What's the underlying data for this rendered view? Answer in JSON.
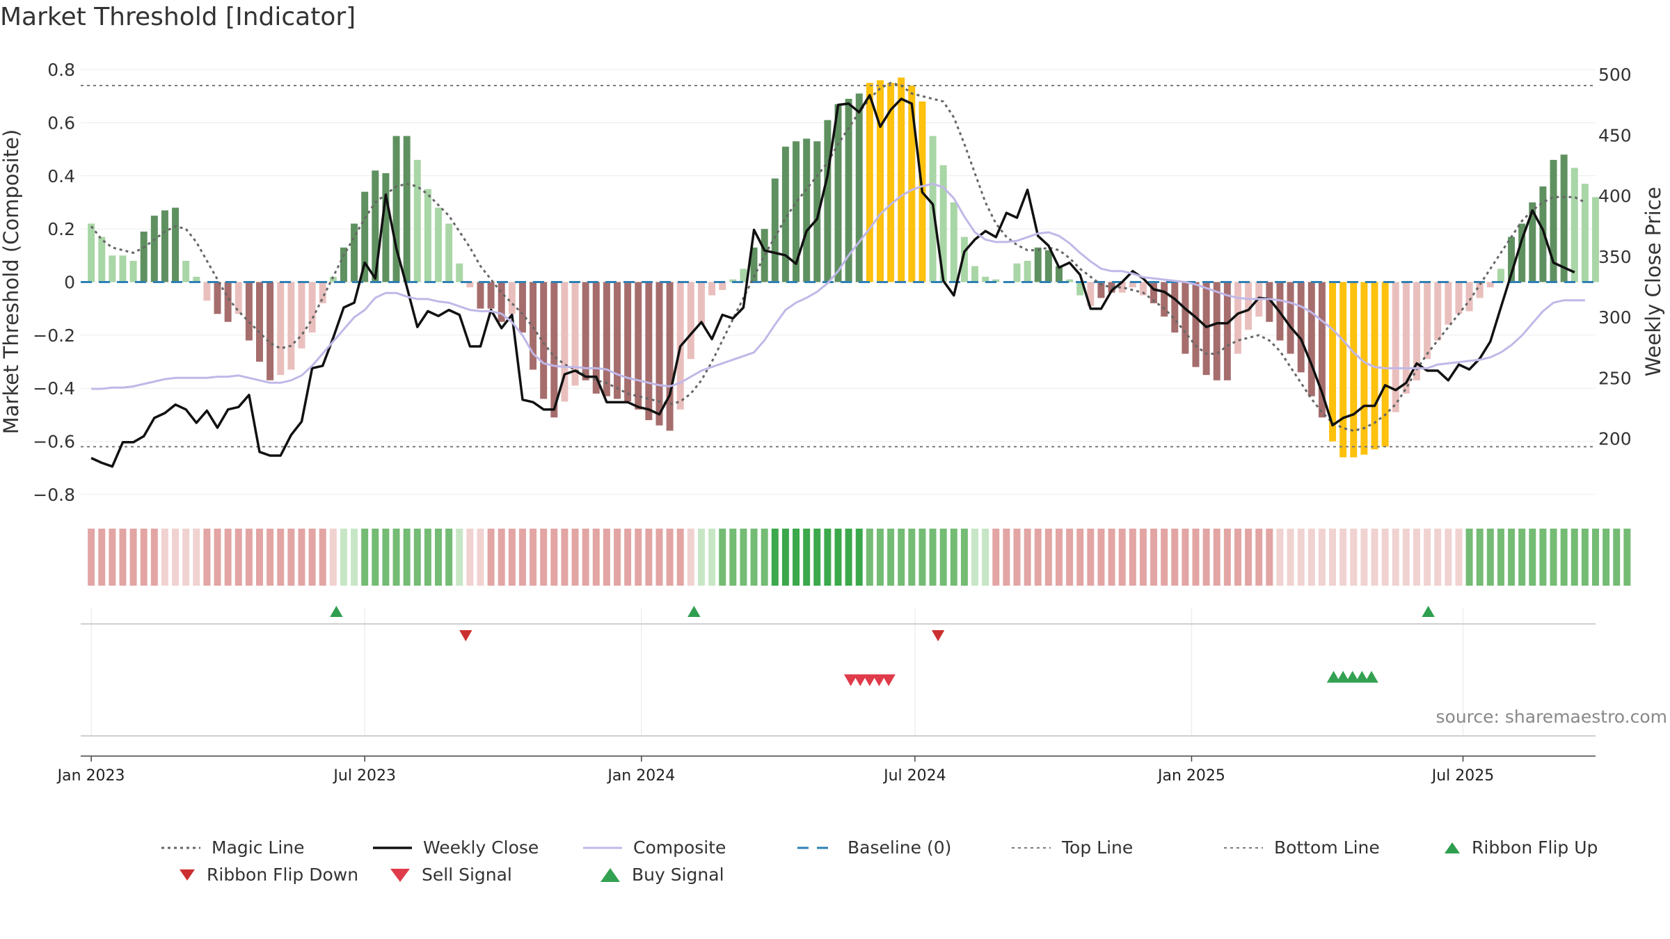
{
  "chart_data": {
    "type": "bar",
    "title": "Market Threshold [Indicator]",
    "ylabel": "Market Threshold (Composite)",
    "ylabel_right": "Weekly Close Price",
    "ylim": [
      -0.85,
      0.85
    ],
    "ylim_right": [
      143,
      515
    ],
    "yticks": [
      0.8,
      0.6,
      0.4,
      0.2,
      0,
      -0.2,
      -0.4,
      -0.6,
      -0.8
    ],
    "ytick_labels": [
      "0.8",
      "0.6",
      "0.4",
      "0.2",
      "0",
      "−0.2",
      "−0.4",
      "−0.6",
      "−0.8"
    ],
    "yticks_right": [
      500,
      450,
      400,
      350,
      300,
      250,
      200
    ],
    "ytick_labels_right": [
      "500",
      "450",
      "400",
      "350",
      "300",
      "250",
      "200"
    ],
    "x_range_weeks": [
      -1,
      143
    ],
    "xticks": [
      {
        "label": "Jan 2023",
        "week": 0
      },
      {
        "label": "Jul 2023",
        "week": 26
      },
      {
        "label": "Jan 2024",
        "week": 52.3
      },
      {
        "label": "Jul 2024",
        "week": 78.3
      },
      {
        "label": "Jan 2025",
        "week": 104.6
      },
      {
        "label": "Jul 2025",
        "week": 130.4
      }
    ],
    "top_line": 0.74,
    "bottom_line": -0.62,
    "baseline": 0,
    "composite_bars": [
      0.22,
      0.17,
      0.1,
      0.1,
      0.08,
      0.19,
      0.25,
      0.27,
      0.28,
      0.08,
      0.02,
      -0.07,
      -0.12,
      -0.15,
      -0.12,
      -0.22,
      -0.3,
      -0.37,
      -0.35,
      -0.33,
      -0.25,
      -0.19,
      -0.08,
      0.02,
      0.13,
      0.22,
      0.34,
      0.42,
      0.41,
      0.55,
      0.55,
      0.46,
      0.35,
      0.28,
      0.22,
      0.07,
      -0.02,
      -0.1,
      -0.1,
      -0.15,
      -0.12,
      -0.19,
      -0.33,
      -0.44,
      -0.51,
      -0.45,
      -0.39,
      -0.37,
      -0.42,
      -0.43,
      -0.44,
      -0.45,
      -0.48,
      -0.52,
      -0.54,
      -0.56,
      -0.48,
      -0.29,
      -0.16,
      -0.05,
      -0.03,
      0.01,
      0.05,
      0.13,
      0.2,
      0.39,
      0.51,
      0.53,
      0.54,
      0.53,
      0.61,
      0.67,
      0.69,
      0.71,
      0.75,
      0.76,
      0.75,
      0.77,
      0.74,
      0.68,
      0.55,
      0.44,
      0.3,
      0.17,
      0.06,
      0.02,
      0.01,
      0,
      0.07,
      0.08,
      0.13,
      0.12,
      0.06,
      0.01,
      -0.05,
      -0.09,
      -0.06,
      -0.04,
      -0.04,
      -0.02,
      -0.05,
      -0.08,
      -0.13,
      -0.19,
      -0.27,
      -0.32,
      -0.35,
      -0.37,
      -0.37,
      -0.27,
      -0.18,
      -0.13,
      -0.15,
      -0.22,
      -0.27,
      -0.34,
      -0.43,
      -0.51,
      -0.6,
      -0.66,
      -0.66,
      -0.65,
      -0.63,
      -0.62,
      -0.49,
      -0.42,
      -0.37,
      -0.29,
      -0.22,
      -0.16,
      -0.12,
      -0.11,
      -0.06,
      -0.02,
      0.05,
      0.17,
      0.22,
      0.3,
      0.36,
      0.46,
      0.48,
      0.43,
      0.37,
      0.32
    ],
    "bar_zones": [
      1,
      1,
      1,
      1,
      1,
      2,
      2,
      2,
      2,
      1,
      1,
      -1,
      -2,
      -2,
      -1,
      -2,
      -2,
      -2,
      -1,
      -1,
      -1,
      -1,
      -1,
      1,
      2,
      2,
      2,
      2,
      2,
      2,
      2,
      1,
      1,
      1,
      1,
      1,
      -1,
      -2,
      -2,
      -2,
      -1,
      -2,
      -2,
      -2,
      -2,
      -1,
      -1,
      -2,
      -2,
      -2,
      -2,
      -2,
      -2,
      -2,
      -2,
      -2,
      -1,
      -1,
      -1,
      -1,
      -1,
      1,
      1,
      2,
      2,
      2,
      2,
      2,
      2,
      2,
      2,
      2,
      2,
      2,
      3,
      3,
      3,
      3,
      3,
      3,
      1,
      1,
      1,
      1,
      1,
      1,
      1,
      1,
      1,
      1,
      2,
      2,
      2,
      1,
      1,
      -1,
      -2,
      -2,
      -1,
      -1,
      -1,
      -2,
      -2,
      -2,
      -2,
      -2,
      -2,
      -2,
      -2,
      -1,
      -1,
      -1,
      -2,
      -2,
      -2,
      -2,
      -2,
      -2,
      -3,
      -3,
      -3,
      -3,
      -3,
      -3,
      -1,
      -1,
      -1,
      -1,
      -1,
      -1,
      -1,
      -1,
      -1,
      -1,
      1,
      2,
      2,
      2,
      2,
      2,
      2,
      1,
      1,
      1
    ],
    "ribbon_levels": [
      -2,
      -2,
      -2,
      -2,
      -2,
      -2,
      -2,
      -1,
      -1,
      -1,
      -1,
      -2,
      -2,
      -2,
      -2,
      -2,
      -2,
      -2,
      -2,
      -2,
      -2,
      -2,
      -2,
      -1,
      1,
      1,
      2,
      2,
      2,
      2,
      2,
      2,
      2,
      2,
      2,
      1,
      -1,
      -1,
      -2,
      -2,
      -2,
      -2,
      -2,
      -2,
      -2,
      -2,
      -2,
      -2,
      -2,
      -2,
      -2,
      -2,
      -2,
      -2,
      -2,
      -2,
      -2,
      -1,
      1,
      1,
      2,
      2,
      2,
      2,
      2,
      3,
      3,
      3,
      3,
      3,
      3,
      3,
      3,
      3,
      2,
      2,
      2,
      2,
      2,
      2,
      2,
      2,
      2,
      2,
      1,
      1,
      -2,
      -2,
      -2,
      -2,
      -2,
      -2,
      -2,
      -2,
      -2,
      -2,
      -2,
      -2,
      -2,
      -2,
      -2,
      -2,
      -2,
      -2,
      -2,
      -2,
      -2,
      -2,
      -2,
      -2,
      -2,
      -2,
      -2,
      -1,
      -1,
      -1,
      -1,
      -1,
      -1,
      -1,
      -1,
      -1,
      -1,
      -1,
      -1,
      -1,
      -1,
      -1,
      -1,
      -1,
      -1,
      2,
      2,
      2,
      2,
      2,
      2,
      2,
      2,
      2,
      2,
      2,
      2,
      2,
      2,
      2,
      2
    ],
    "series": [
      {
        "name": "Magic Line",
        "style": "dotted",
        "color": "#666666",
        "values": [
          0.21,
          0.16,
          0.13,
          0.12,
          0.11,
          0.13,
          0.16,
          0.19,
          0.21,
          0.2,
          0.15,
          0.08,
          0.01,
          -0.06,
          -0.11,
          -0.15,
          -0.19,
          -0.23,
          -0.25,
          -0.24,
          -0.2,
          -0.14,
          -0.06,
          0.02,
          0.1,
          0.17,
          0.24,
          0.3,
          0.33,
          0.36,
          0.37,
          0.36,
          0.33,
          0.29,
          0.25,
          0.19,
          0.13,
          0.06,
          0.01,
          -0.04,
          -0.08,
          -0.12,
          -0.17,
          -0.23,
          -0.28,
          -0.31,
          -0.33,
          -0.35,
          -0.37,
          -0.38,
          -0.4,
          -0.42,
          -0.43,
          -0.44,
          -0.45,
          -0.46,
          -0.45,
          -0.42,
          -0.37,
          -0.3,
          -0.22,
          -0.14,
          -0.06,
          0.02,
          0.1,
          0.17,
          0.24,
          0.3,
          0.35,
          0.4,
          0.45,
          0.52,
          0.58,
          0.64,
          0.69,
          0.73,
          0.75,
          0.74,
          0.71,
          0.7,
          0.69,
          0.68,
          0.62,
          0.52,
          0.41,
          0.3,
          0.22,
          0.17,
          0.14,
          0.12,
          0.12,
          0.13,
          0.12,
          0.09,
          0.05,
          0.02,
          -0.01,
          -0.02,
          -0.02,
          -0.03,
          -0.04,
          -0.07,
          -0.1,
          -0.14,
          -0.19,
          -0.24,
          -0.27,
          -0.27,
          -0.24,
          -0.22,
          -0.21,
          -0.2,
          -0.22,
          -0.26,
          -0.32,
          -0.38,
          -0.44,
          -0.49,
          -0.53,
          -0.55,
          -0.56,
          -0.55,
          -0.53,
          -0.5,
          -0.46,
          -0.4,
          -0.33,
          -0.27,
          -0.22,
          -0.17,
          -0.12,
          -0.07,
          -0.01,
          0.05,
          0.11,
          0.17,
          0.23,
          0.27,
          0.3,
          0.32,
          0.32,
          0.32,
          0.3
        ]
      },
      {
        "name": "Weekly Close",
        "style": "solid",
        "color": "#111111",
        "axis": "right",
        "values": [
          184,
          180,
          177,
          197,
          197,
          202,
          217,
          221,
          228,
          224,
          213,
          223,
          209,
          224,
          226,
          236,
          189,
          186,
          186,
          203,
          214,
          258,
          260,
          283,
          308,
          312,
          345,
          332,
          401,
          357,
          325,
          292,
          305,
          301,
          306,
          302,
          276,
          276,
          306,
          291,
          302,
          232,
          230,
          224,
          224,
          253,
          256,
          251,
          251,
          230,
          230,
          230,
          226,
          224,
          220,
          236,
          276,
          286,
          296,
          282,
          302,
          299,
          308,
          372,
          355,
          353,
          351,
          344,
          371,
          381,
          417,
          475,
          476,
          469,
          483,
          457,
          471,
          480,
          476,
          403,
          393,
          330,
          318,
          354,
          364,
          371,
          366,
          386,
          382,
          405,
          367,
          359,
          341,
          345,
          335,
          307,
          307,
          322,
          329,
          338,
          332,
          323,
          321,
          315,
          307,
          300,
          292,
          295,
          295,
          303,
          306,
          316,
          315,
          304,
          292,
          282,
          261,
          238,
          211,
          217,
          220,
          227,
          227,
          244,
          240,
          246,
          262,
          256,
          256,
          248,
          261,
          257,
          266,
          280,
          308,
          336,
          364,
          388,
          372,
          345,
          341,
          337
        ]
      },
      {
        "name": "Composite",
        "style": "solid",
        "color": "#c0b8e8",
        "axis": "right",
        "values": [
          241,
          241,
          242,
          242,
          243,
          245,
          247,
          249,
          250,
          250,
          250,
          250,
          251,
          251,
          252,
          250,
          248,
          246,
          246,
          248,
          252,
          260,
          270,
          280,
          290,
          300,
          306,
          316,
          320,
          320,
          317,
          315,
          315,
          313,
          312,
          309,
          306,
          305,
          305,
          303,
          296,
          285,
          270,
          262,
          260,
          259,
          259,
          258,
          258,
          257,
          253,
          250,
          248,
          246,
          244,
          243,
          246,
          251,
          256,
          259,
          262,
          265,
          268,
          271,
          281,
          294,
          306,
          312,
          316,
          321,
          328,
          338,
          351,
          362,
          373,
          385,
          393,
          400,
          405,
          408,
          410,
          407,
          398,
          383,
          370,
          364,
          362,
          362,
          363,
          366,
          369,
          370,
          367,
          361,
          353,
          346,
          340,
          338,
          338,
          336,
          333,
          332,
          331,
          330,
          329,
          327,
          324,
          321,
          318,
          316,
          315,
          315,
          315,
          314,
          312,
          309,
          304,
          297,
          290,
          281,
          271,
          263,
          259,
          258,
          258,
          258,
          258,
          258,
          261,
          262,
          263,
          264,
          265,
          267,
          271,
          277,
          285,
          295,
          305,
          312,
          314,
          314,
          314
        ]
      }
    ],
    "ribbon_flip_up_weeks": [
      23.3,
      57.3,
      127.1
    ],
    "ribbon_flip_down_weeks": [
      35.6,
      80.5
    ],
    "sell_signal_weeks": [
      72.2,
      73.1,
      74.0,
      74.9,
      75.8
    ],
    "buy_signal_weeks": [
      118.1,
      119.0,
      119.9,
      120.8,
      121.7
    ],
    "legend": [
      "Magic Line",
      "Weekly Close",
      "Composite",
      "Baseline (0)",
      "Top Line",
      "Bottom Line",
      "Ribbon Flip Up",
      "Ribbon Flip Down",
      "Sell Signal",
      "Buy Signal"
    ],
    "legend_position": "bottom",
    "source": "source: sharemaestro.com",
    "colors": {
      "bar_pos_strong": "#5f9160",
      "bar_pos_weak": "#a9d6a6",
      "bar_neg_strong": "#a66d6d",
      "bar_neg_weak": "#e9bfbd",
      "bar_extreme": "#fdc10e",
      "ribbon_pos": [
        "#c7e6c5",
        "#74bb74",
        "#3ba84b"
      ],
      "ribbon_neg": [
        "#f0d2d1",
        "#e2a5a4",
        "#d78987"
      ],
      "baseline": "#2f7fb3",
      "flip_up": "#2e9e4f",
      "flip_down": "#cc2f2f",
      "sell": "#e03b4a",
      "buy": "#33a152"
    }
  }
}
